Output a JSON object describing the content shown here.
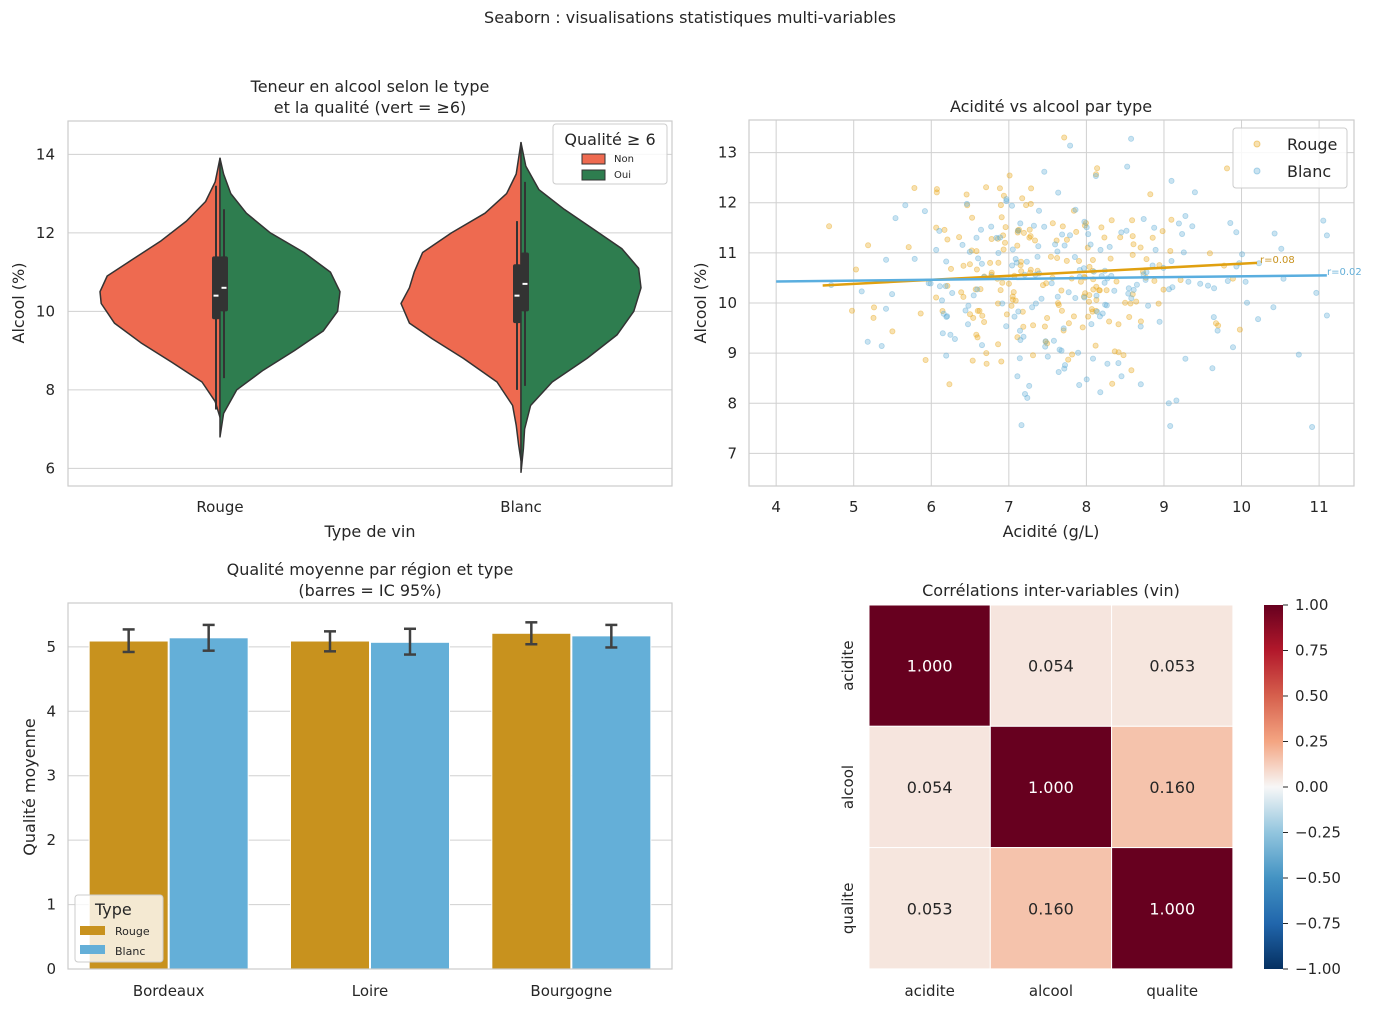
{
  "figure": {
    "suptitle": "Seaborn : visualisations statistiques multi-variables"
  },
  "colors": {
    "rouge_violin": "#EE6A50",
    "oui_violin": "#2E7D4F",
    "rouge": "#C8921E",
    "blanc": "#64AFD8",
    "grid": "#D0D0D0",
    "spine": "#CCCCCC",
    "scatter_rouge": "#E8A820"
  },
  "chart_data": [
    {
      "id": "violin",
      "type": "violin",
      "title_lines": [
        "Teneur en alcool selon le type",
        "et la qualité (vert = ≥6)"
      ],
      "xlabel": "Type de vin",
      "ylabel": "Alcool (%)",
      "categories": [
        "Rouge",
        "Blanc"
      ],
      "ylim": [
        5.55,
        14.85
      ],
      "yticks": [
        6,
        8,
        10,
        12,
        14
      ],
      "legend": {
        "title": "Qualité ≥ 6",
        "labels": [
          "Non",
          "Oui"
        ],
        "position": "upper right"
      },
      "halves": [
        {
          "category": "Rouge",
          "side": "left",
          "group": "Non",
          "y_min": 7.3,
          "y_max": 13.9,
          "widest_at": 10.5,
          "q1": 9.8,
          "median": 10.4,
          "q3": 11.4,
          "whisker_low": 7.5,
          "whisker_high": 13.2,
          "profile": [
            [
              7.3,
              0.0
            ],
            [
              7.7,
              0.04
            ],
            [
              8.2,
              0.15
            ],
            [
              8.7,
              0.4
            ],
            [
              9.2,
              0.66
            ],
            [
              9.7,
              0.88
            ],
            [
              10.2,
              0.99
            ],
            [
              10.5,
              1.0
            ],
            [
              10.9,
              0.94
            ],
            [
              11.3,
              0.74
            ],
            [
              11.8,
              0.49
            ],
            [
              12.3,
              0.28
            ],
            [
              12.8,
              0.12
            ],
            [
              13.3,
              0.04
            ],
            [
              13.9,
              0.0
            ]
          ]
        },
        {
          "category": "Rouge",
          "side": "right",
          "group": "Oui",
          "y_min": 6.8,
          "y_max": 13.9,
          "widest_at": 10.5,
          "q1": 10.0,
          "median": 10.6,
          "q3": 11.4,
          "whisker_low": 8.3,
          "whisker_high": 12.6,
          "profile": [
            [
              6.8,
              0.0
            ],
            [
              7.4,
              0.03
            ],
            [
              8.0,
              0.14
            ],
            [
              8.5,
              0.36
            ],
            [
              9.0,
              0.62
            ],
            [
              9.5,
              0.86
            ],
            [
              10.0,
              0.98
            ],
            [
              10.5,
              1.0
            ],
            [
              11.0,
              0.92
            ],
            [
              11.5,
              0.7
            ],
            [
              12.0,
              0.42
            ],
            [
              12.5,
              0.22
            ],
            [
              13.0,
              0.09
            ],
            [
              13.5,
              0.03
            ],
            [
              13.9,
              0.0
            ]
          ]
        },
        {
          "category": "Blanc",
          "side": "left",
          "group": "Non",
          "y_min": 6.2,
          "y_max": 14.3,
          "widest_at": 10.2,
          "q1": 9.7,
          "median": 10.4,
          "q3": 11.2,
          "whisker_low": 8.0,
          "whisker_high": 12.3,
          "profile": [
            [
              6.2,
              0.0
            ],
            [
              6.6,
              0.02
            ],
            [
              7.1,
              0.04
            ],
            [
              7.6,
              0.07
            ],
            [
              8.2,
              0.2
            ],
            [
              8.8,
              0.48
            ],
            [
              9.3,
              0.74
            ],
            [
              9.7,
              0.93
            ],
            [
              10.2,
              1.0
            ],
            [
              10.6,
              0.93
            ],
            [
              11.0,
              0.89
            ],
            [
              11.5,
              0.82
            ],
            [
              12.0,
              0.58
            ],
            [
              12.5,
              0.3
            ],
            [
              13.0,
              0.12
            ],
            [
              13.5,
              0.04
            ],
            [
              14.3,
              0.0
            ]
          ]
        },
        {
          "category": "Blanc",
          "side": "right",
          "group": "Oui",
          "y_min": 5.9,
          "y_max": 14.3,
          "widest_at": 10.8,
          "q1": 10.0,
          "median": 10.7,
          "q3": 11.5,
          "whisker_low": 8.1,
          "whisker_high": 13.3,
          "profile": [
            [
              5.9,
              0.0
            ],
            [
              6.5,
              0.02
            ],
            [
              7.0,
              0.03
            ],
            [
              7.6,
              0.08
            ],
            [
              8.2,
              0.26
            ],
            [
              8.8,
              0.55
            ],
            [
              9.4,
              0.8
            ],
            [
              10.0,
              0.94
            ],
            [
              10.6,
              1.0
            ],
            [
              11.1,
              0.98
            ],
            [
              11.6,
              0.84
            ],
            [
              12.1,
              0.6
            ],
            [
              12.6,
              0.36
            ],
            [
              13.1,
              0.15
            ],
            [
              13.7,
              0.04
            ],
            [
              14.3,
              0.0
            ]
          ]
        }
      ]
    },
    {
      "id": "scatter",
      "type": "scatter",
      "title": "Acidité vs alcool par type",
      "xlabel": "Acidité (g/L)",
      "ylabel": "Alcool (%)",
      "xlim": [
        3.65,
        11.45
      ],
      "ylim": [
        6.35,
        13.65
      ],
      "xticks": [
        4,
        5,
        6,
        7,
        8,
        9,
        10,
        11
      ],
      "yticks": [
        7,
        8,
        9,
        10,
        11,
        12,
        13
      ],
      "legend": {
        "labels": [
          "Rouge",
          "Blanc"
        ],
        "position": "upper right"
      },
      "series": [
        {
          "name": "Rouge",
          "n_points": 200,
          "seed": 11,
          "x_range": [
            4.6,
            10.2
          ],
          "x_mean": 7.5,
          "x_sd": 1.0,
          "y_mean": 10.6,
          "y_sd": 1.05,
          "regression": {
            "x": [
              4.6,
              10.2
            ],
            "y": [
              10.35,
              10.8
            ]
          },
          "r_label": "r=0.08"
        },
        {
          "name": "Blanc",
          "n_points": 200,
          "seed": 29,
          "x_range": [
            4.0,
            11.1
          ],
          "x_mean": 7.6,
          "x_sd": 1.4,
          "y_mean": 10.4,
          "y_sd": 1.1,
          "regression": {
            "x": [
              4.0,
              11.1
            ],
            "y": [
              10.43,
              10.55
            ]
          },
          "r_label": "r=0.02"
        }
      ]
    },
    {
      "id": "bars",
      "type": "bar",
      "title_lines": [
        "Qualité moyenne par région et type",
        "(barres = IC 95%)"
      ],
      "xlabel": "",
      "ylabel": "Qualité moyenne",
      "categories": [
        "Bordeaux",
        "Loire",
        "Bourgogne"
      ],
      "ylim": [
        0,
        5.68
      ],
      "yticks": [
        0,
        1,
        2,
        3,
        4,
        5
      ],
      "legend": {
        "title": "Type",
        "labels": [
          "Rouge",
          "Blanc"
        ],
        "position": "lower left"
      },
      "series": [
        {
          "name": "Rouge",
          "values": [
            5.09,
            5.09,
            5.21
          ],
          "ci_low": [
            4.92,
            4.93,
            5.04
          ],
          "ci_high": [
            5.27,
            5.24,
            5.38
          ]
        },
        {
          "name": "Blanc",
          "values": [
            5.14,
            5.07,
            5.17
          ],
          "ci_low": [
            4.94,
            4.88,
            4.99
          ],
          "ci_high": [
            5.34,
            5.28,
            5.34
          ]
        }
      ]
    },
    {
      "id": "heatmap",
      "type": "heatmap",
      "title": "Corrélations inter-variables (vin)",
      "labels": [
        "acidite",
        "alcool",
        "qualite"
      ],
      "matrix": [
        [
          1.0,
          0.054,
          0.053
        ],
        [
          0.054,
          1.0,
          0.16
        ],
        [
          0.053,
          0.16,
          1.0
        ]
      ],
      "annotations": [
        [
          "1.000",
          "0.054",
          "0.053"
        ],
        [
          "0.054",
          "1.000",
          "0.160"
        ],
        [
          "0.053",
          "0.160",
          "1.000"
        ]
      ],
      "colorbar": {
        "range": [
          -1,
          1
        ],
        "ticks": [
          "1.00",
          "0.75",
          "0.50",
          "0.25",
          "0.00",
          "−0.25",
          "−0.50",
          "−0.75",
          "−1.00"
        ],
        "tick_values": [
          1,
          0.75,
          0.5,
          0.25,
          0,
          -0.25,
          -0.5,
          -0.75,
          -1
        ]
      },
      "colormap": "RdBu_r"
    }
  ]
}
